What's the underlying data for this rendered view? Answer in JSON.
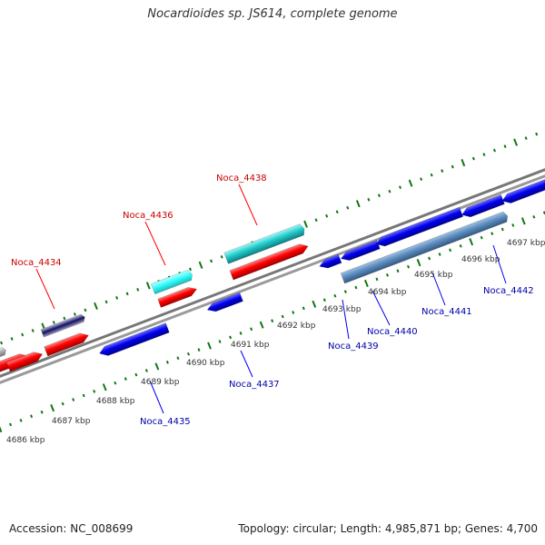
{
  "title": "Nocardioides sp. JS614, complete genome",
  "footer": {
    "accession": "Accession: NC_008699",
    "stats": "Topology: circular; Length: 4,985,871 bp; Genes: 4,700"
  },
  "colors": {
    "forward_gene": "#ff0000",
    "reverse_gene": "#0000ee",
    "cyan_gene": "#22cccc",
    "steelblue_gene": "#5b8bbf",
    "navy_gene": "#101060",
    "grey_gene": "#aaaaaa",
    "tick": "#117711",
    "backbone": "#888888",
    "forward_label": "#cc0000",
    "reverse_label": "#0000aa"
  },
  "kbp_labels": [
    "4686 kbp",
    "4687 kbp",
    "4688 kbp",
    "4689 kbp",
    "4690 kbp",
    "4691 kbp",
    "4692 kbp",
    "4693 kbp",
    "4694 kbp",
    "4695 kbp",
    "4696 kbp",
    "4697 kbp"
  ],
  "gene_labels": {
    "forward": [
      "Noca_4434",
      "Noca_4436",
      "Noca_4438"
    ],
    "reverse": [
      "Noca_4435",
      "Noca_4437",
      "Noca_4439",
      "Noca_4440",
      "Noca_4441",
      "Noca_4442"
    ]
  }
}
